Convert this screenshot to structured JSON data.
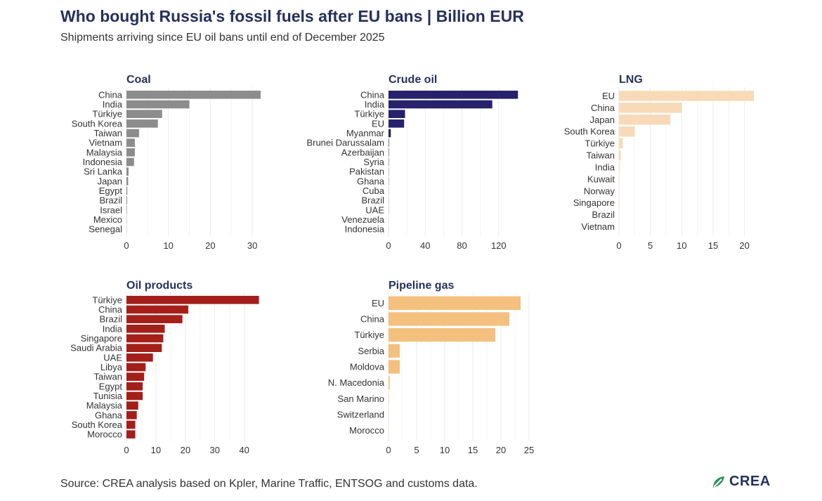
{
  "header": {
    "title": "Who bought Russia's fossil fuels after EU bans | Billion EUR",
    "subtitle": "Shipments arriving since EU oil bans until end of December 2025"
  },
  "footer": {
    "source": "Source: CREA analysis based on Kpler, Marine Traffic, ENTSOG and customs data.",
    "logo_text": "CREA"
  },
  "colors": {
    "title": "#26305d",
    "grid": "#ebebeb",
    "text": "#333333"
  },
  "chart_data": [
    {
      "type": "bar",
      "orientation": "horizontal",
      "title": "Coal",
      "color": "#8c8c8c",
      "categories": [
        "China",
        "India",
        "Türkiye",
        "South Korea",
        "Taiwan",
        "Vietnam",
        "Malaysia",
        "Indonesia",
        "Sri Lanka",
        "Japan",
        "Egypt",
        "Brazil",
        "Israel",
        "Mexico",
        "Senegal"
      ],
      "values": [
        32,
        15,
        8.5,
        7.5,
        3,
        2,
        2,
        1.8,
        0.5,
        0.4,
        0.2,
        0.15,
        0.1,
        0.05,
        0.03
      ],
      "xlim": [
        0,
        33
      ],
      "xticks": [
        0,
        10,
        20,
        30
      ]
    },
    {
      "type": "bar",
      "orientation": "horizontal",
      "title": "Crude oil",
      "color": "#27226b",
      "categories": [
        "China",
        "India",
        "Türkiye",
        "EU",
        "Myanmar",
        "Brunei Darussalam",
        "Azerbaijan",
        "Syria",
        "Pakistan",
        "Ghana",
        "Cuba",
        "Brazil",
        "UAE",
        "Venezuela",
        "Indonesia"
      ],
      "values": [
        141,
        113,
        18,
        17,
        2.5,
        0.5,
        0.4,
        0.3,
        0.2,
        0.2,
        0.1,
        0.1,
        0.1,
        0.05,
        0.05
      ],
      "xlim": [
        0,
        150
      ],
      "xticks": [
        0,
        40,
        80,
        120
      ]
    },
    {
      "type": "bar",
      "orientation": "horizontal",
      "title": "LNG",
      "color": "#f8dab8",
      "categories": [
        "EU",
        "China",
        "Japan",
        "South Korea",
        "Türkiye",
        "Taiwan",
        "India",
        "Kuwait",
        "Norway",
        "Singapore",
        "Brazil",
        "Vietnam"
      ],
      "values": [
        21.5,
        10,
        8.2,
        2.5,
        0.6,
        0.3,
        0.1,
        0.05,
        0.05,
        0.05,
        0.03,
        0.03
      ],
      "xlim": [
        0,
        22.5
      ],
      "xticks": [
        0,
        5,
        10,
        15,
        20
      ]
    },
    {
      "type": "bar",
      "orientation": "horizontal",
      "title": "Oil products",
      "color": "#a41f1a",
      "categories": [
        "Türkiye",
        "China",
        "Brazil",
        "India",
        "Singapore",
        "Saudi Arabia",
        "UAE",
        "Libya",
        "Taiwan",
        "Egypt",
        "Tunisia",
        "Malaysia",
        "Ghana",
        "South Korea",
        "Morocco"
      ],
      "values": [
        45,
        21,
        19,
        13,
        12.5,
        12,
        9,
        6.5,
        6,
        5.5,
        5.5,
        4,
        3.5,
        3,
        3
      ],
      "xlim": [
        0,
        47
      ],
      "xticks": [
        0,
        10,
        20,
        30,
        40
      ]
    },
    {
      "type": "bar",
      "orientation": "horizontal",
      "title": "Pipeline gas",
      "color": "#f3c07e",
      "categories": [
        "EU",
        "China",
        "Türkiye",
        "Serbia",
        "Moldova",
        "N. Macedonia",
        "San Marino",
        "Switzerland",
        "Morocco"
      ],
      "values": [
        23.5,
        21.5,
        19,
        2,
        2,
        0.2,
        0.05,
        0.03,
        0.02
      ],
      "xlim": [
        0,
        25.5
      ],
      "xticks": [
        0,
        5,
        10,
        15,
        20,
        25
      ]
    }
  ]
}
